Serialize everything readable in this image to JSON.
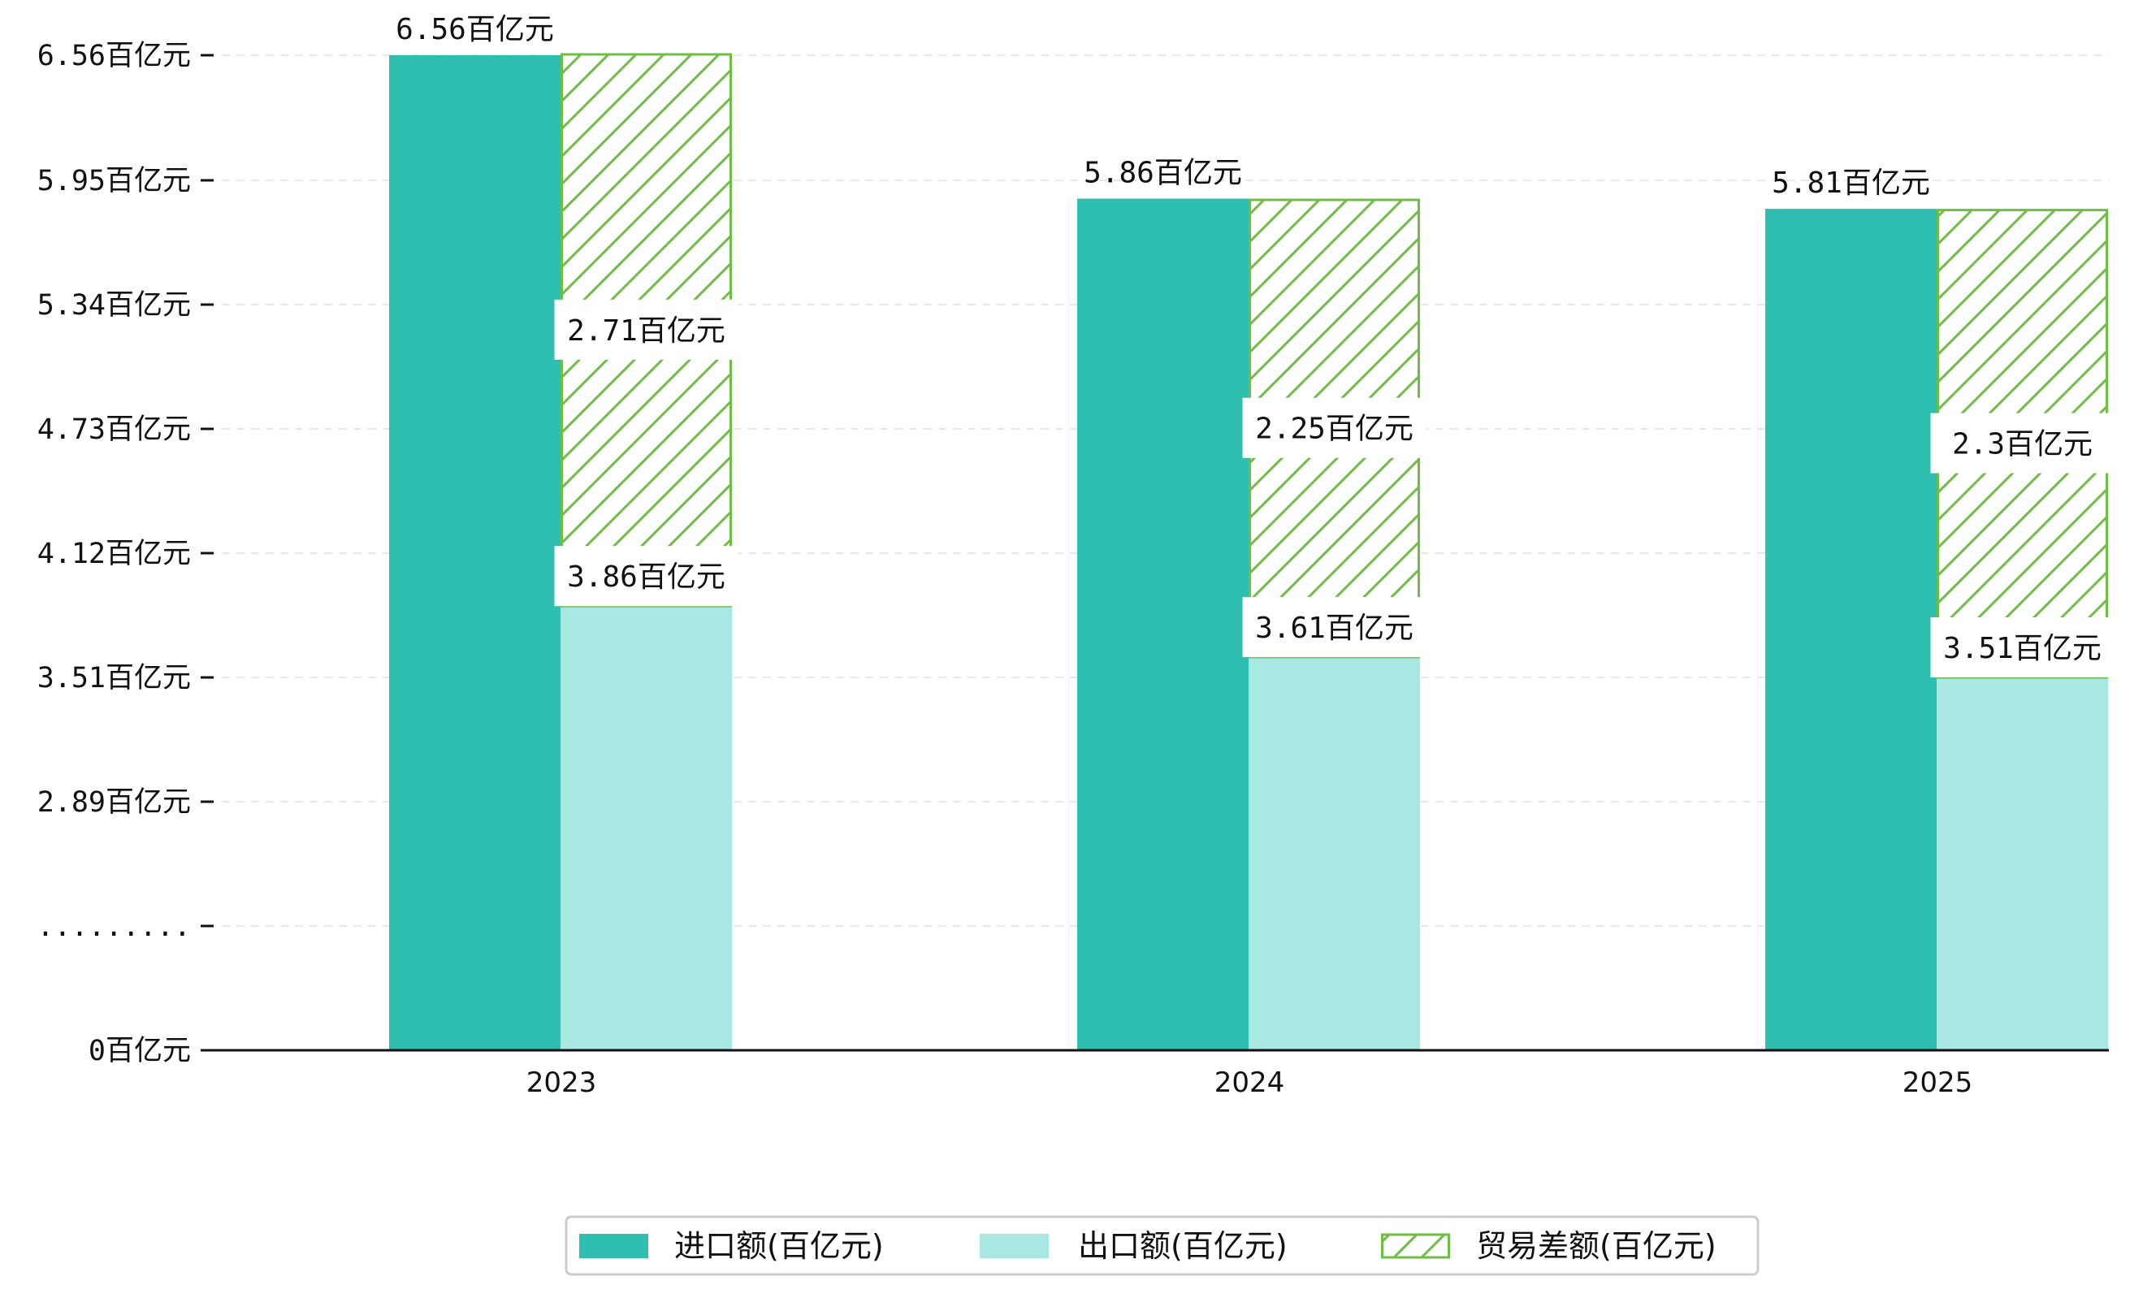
{
  "chart_data": {
    "type": "bar",
    "categories": [
      "2023",
      "2024",
      "2025"
    ],
    "series": [
      {
        "name": "进口额(百亿元)",
        "values": [
          6.56,
          5.86,
          5.81
        ],
        "color": "#2fbfb1",
        "labels": [
          "6.56百亿元",
          "5.86百亿元",
          "5.81百亿元"
        ]
      },
      {
        "name": "出口额(百亿元)",
        "values": [
          3.86,
          3.61,
          3.51
        ],
        "color": "#a9e8e2",
        "labels": [
          "3.86百亿元",
          "3.61百亿元",
          "3.51百亿元"
        ]
      },
      {
        "name": "贸易差额(百亿元)",
        "values": [
          2.71,
          2.25,
          2.3
        ],
        "color": "#6fbe44",
        "hatch": true,
        "labels": [
          "2.71百亿元",
          "2.25百亿元",
          "2.3百亿元"
        ]
      }
    ],
    "y_ticks": [
      {
        "value": 0,
        "label": "0百亿元"
      },
      {
        "value": 1,
        "label": "........."
      },
      {
        "value": 2.89,
        "label": "2.89百亿元"
      },
      {
        "value": 3.51,
        "label": "3.51百亿元"
      },
      {
        "value": 4.12,
        "label": "4.12百亿元"
      },
      {
        "value": 4.73,
        "label": "4.73百亿元"
      },
      {
        "value": 5.34,
        "label": "5.34百亿元"
      },
      {
        "value": 5.95,
        "label": "5.95百亿元"
      },
      {
        "value": 6.56,
        "label": "6.56百亿元"
      }
    ],
    "title": "",
    "xlabel": "",
    "ylabel": "",
    "axis_break": true,
    "grid": "y-dashed",
    "legend_position": "bottom-center"
  }
}
